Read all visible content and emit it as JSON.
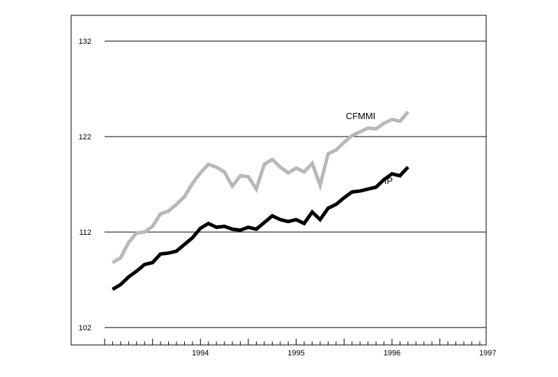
{
  "chart_data": {
    "type": "line",
    "title": "",
    "xlabel": "",
    "ylabel": "",
    "ylim": [
      102,
      134
    ],
    "xlim": [
      1993.0,
      1997.5
    ],
    "y_ticks": [
      102,
      112,
      122,
      132
    ],
    "y_tick_labels": [
      "102",
      "112",
      "122",
      "132"
    ],
    "x_tick_labels": [
      {
        "label": "1994",
        "pos": 1994.0
      },
      {
        "label": "1995",
        "pos": 1995.0
      },
      {
        "label": "1996",
        "pos": 1996.0
      },
      {
        "label": "1997",
        "pos": 1997.0
      }
    ],
    "grid": "horizontal",
    "legend": "inline-labels",
    "colors": {
      "CFMMI": "#b8b8b8",
      "IP": "#000000",
      "gridline": "#000000",
      "frame": "#000000"
    },
    "series": [
      {
        "name": "CFMMI",
        "x": [
          1993.583,
          1993.667,
          1993.75,
          1993.833,
          1993.917,
          1994.0,
          1994.083,
          1994.167,
          1994.25,
          1994.333,
          1994.417,
          1994.5,
          1994.583,
          1994.667,
          1994.75,
          1994.833,
          1994.917,
          1995.0,
          1995.083,
          1995.167,
          1995.25,
          1995.333,
          1995.417,
          1995.5,
          1995.583,
          1995.667,
          1995.75,
          1995.833,
          1995.917,
          1996.0,
          1996.083,
          1996.167,
          1996.25,
          1996.333,
          1996.417,
          1996.5,
          1996.583,
          1996.667
        ],
        "values": [
          108.8,
          109.3,
          110.9,
          111.9,
          112.0,
          112.6,
          113.9,
          114.2,
          114.9,
          115.7,
          117.1,
          118.2,
          119.1,
          118.8,
          118.3,
          116.8,
          117.9,
          117.8,
          116.5,
          119.1,
          119.6,
          118.8,
          118.2,
          118.7,
          118.3,
          119.2,
          116.9,
          120.2,
          120.6,
          121.4,
          122.1,
          122.5,
          122.9,
          122.8,
          123.4,
          123.8,
          123.6,
          124.6
        ],
        "label": "CFMMI"
      },
      {
        "name": "IP",
        "x": [
          1993.583,
          1993.667,
          1993.75,
          1993.833,
          1993.917,
          1994.0,
          1994.083,
          1994.167,
          1994.25,
          1994.333,
          1994.417,
          1994.5,
          1994.583,
          1994.667,
          1994.75,
          1994.833,
          1994.917,
          1995.0,
          1995.083,
          1995.167,
          1995.25,
          1995.333,
          1995.417,
          1995.5,
          1995.583,
          1995.667,
          1995.75,
          1995.833,
          1995.917,
          1996.0,
          1996.083,
          1996.167,
          1996.25,
          1996.333,
          1996.417,
          1996.5,
          1996.583,
          1996.667
        ],
        "values": [
          106.0,
          106.5,
          107.3,
          107.9,
          108.6,
          108.8,
          109.7,
          109.8,
          110.0,
          110.7,
          111.4,
          112.4,
          112.9,
          112.5,
          112.6,
          112.3,
          112.2,
          112.5,
          112.3,
          113.0,
          113.7,
          113.3,
          113.1,
          113.3,
          112.9,
          114.1,
          113.3,
          114.5,
          114.9,
          115.6,
          116.2,
          116.3,
          116.5,
          116.7,
          117.5,
          118.1,
          117.9,
          118.8
        ],
        "label": "IP"
      }
    ]
  }
}
